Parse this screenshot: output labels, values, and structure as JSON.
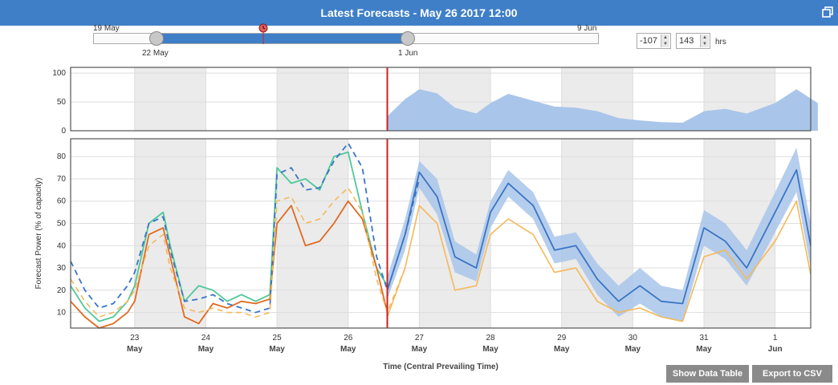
{
  "header": {
    "title": "Latest Forecasts - May 26 2017 12:00"
  },
  "range": {
    "start_label": "19 May",
    "end_label": "9 Jun",
    "left_handle_label": "22 May",
    "right_handle_label": "1 Jun"
  },
  "controls": {
    "back_hours": "-107",
    "forward_hours": "143",
    "unit": "hrs"
  },
  "buttons": {
    "data_table": "Show Data Table",
    "export": "Export to CSV"
  },
  "colors": {
    "accent": "#3f7fc8",
    "now_line": "#cc2222",
    "forecast_blue": "#3a75c4",
    "band": "#a9c5ea",
    "green": "#4fc89a",
    "orange": "#e06a20",
    "light_orange": "#f5b85a",
    "shade": "#ebebeb"
  },
  "chart_data": [
    {
      "type": "area",
      "ylim": [
        0,
        110
      ],
      "yticks": [
        0,
        50,
        100
      ],
      "x": [
        26.55,
        26.8,
        27.0,
        27.25,
        27.5,
        27.8,
        28.0,
        28.25,
        28.6,
        28.9,
        29.2,
        29.5,
        29.8,
        30.1,
        30.4,
        30.7,
        31.0,
        31.3,
        31.6,
        32.0,
        32.3,
        32.6
      ],
      "values": [
        25,
        55,
        72,
        65,
        40,
        30,
        48,
        64,
        52,
        42,
        40,
        34,
        22,
        18,
        15,
        14,
        34,
        38,
        30,
        48,
        72,
        48
      ]
    },
    {
      "type": "line",
      "ylabel": "Forecast Power (% of capacity)",
      "xlabel": "Time (Central Prevailing Time)",
      "ylim": [
        3,
        88
      ],
      "yticks": [
        10,
        20,
        30,
        40,
        50,
        60,
        70,
        80
      ],
      "xlim": [
        22.1,
        32.5
      ],
      "x_tick_days": [
        "23",
        "24",
        "25",
        "26",
        "27",
        "28",
        "29",
        "30",
        "31",
        "1"
      ],
      "x_tick_months": [
        "May",
        "May",
        "May",
        "May",
        "May",
        "May",
        "May",
        "May",
        "May",
        "Jun"
      ],
      "now": 26.55,
      "shaded_days": [
        [
          23,
          24
        ],
        [
          25,
          26
        ],
        [
          27,
          28
        ],
        [
          29,
          30
        ],
        [
          31,
          32
        ]
      ],
      "series": [
        {
          "style": "green",
          "x": [
            22.1,
            22.3,
            22.5,
            22.7,
            22.9,
            23.0,
            23.2,
            23.4,
            23.5,
            23.7,
            23.9,
            24.1,
            24.3,
            24.5,
            24.7,
            24.9,
            25.0,
            25.2,
            25.4,
            25.6,
            25.8,
            26.0,
            26.2,
            26.4,
            26.55
          ],
          "values": [
            22,
            12,
            6,
            8,
            15,
            22,
            50,
            55,
            40,
            15,
            22,
            20,
            15,
            18,
            15,
            18,
            75,
            68,
            70,
            65,
            80,
            82,
            55,
            30,
            22
          ]
        },
        {
          "style": "orange",
          "x": [
            22.1,
            22.3,
            22.5,
            22.7,
            22.9,
            23.0,
            23.2,
            23.4,
            23.5,
            23.7,
            23.9,
            24.1,
            24.3,
            24.5,
            24.7,
            24.9,
            25.0,
            25.2,
            25.4,
            25.6,
            25.8,
            26.0,
            26.2,
            26.4,
            26.55
          ],
          "values": [
            15,
            8,
            3,
            5,
            10,
            15,
            45,
            48,
            35,
            8,
            5,
            14,
            12,
            15,
            14,
            16,
            50,
            58,
            40,
            42,
            50,
            60,
            52,
            30,
            10
          ]
        },
        {
          "style": "blue-dashed",
          "x": [
            22.1,
            22.3,
            22.5,
            22.7,
            22.9,
            23.0,
            23.2,
            23.4,
            23.5,
            23.7,
            23.9,
            24.1,
            24.3,
            24.5,
            24.7,
            24.9,
            25.0,
            25.2,
            25.4,
            25.6,
            25.8,
            26.0,
            26.2,
            26.4,
            26.55,
            26.8,
            27.0
          ],
          "values": [
            33,
            20,
            12,
            14,
            22,
            28,
            50,
            53,
            38,
            15,
            16,
            18,
            14,
            12,
            10,
            12,
            72,
            75,
            65,
            66,
            78,
            86,
            75,
            35,
            20,
            45,
            70
          ]
        },
        {
          "style": "light-orange-dashed",
          "x": [
            22.1,
            22.3,
            22.5,
            22.7,
            22.9,
            23.0,
            23.2,
            23.4,
            23.5,
            23.7,
            23.9,
            24.1,
            24.3,
            24.5,
            24.7,
            24.9,
            25.0,
            25.2,
            25.4,
            25.6,
            25.8,
            26.0,
            26.2,
            26.4,
            26.55,
            26.8
          ],
          "values": [
            25,
            15,
            8,
            10,
            15,
            20,
            40,
            45,
            30,
            12,
            10,
            12,
            10,
            10,
            8,
            10,
            60,
            62,
            50,
            52,
            60,
            66,
            55,
            25,
            10,
            30
          ]
        },
        {
          "style": "blue",
          "x": [
            26.55,
            26.8,
            27.0,
            27.25,
            27.5,
            27.8,
            28.0,
            28.25,
            28.6,
            28.9,
            29.2,
            29.5,
            29.8,
            30.1,
            30.4,
            30.7,
            31.0,
            31.3,
            31.6,
            32.0,
            32.3,
            32.5
          ],
          "values": [
            20,
            45,
            73,
            62,
            35,
            30,
            55,
            68,
            58,
            38,
            40,
            25,
            15,
            22,
            15,
            14,
            48,
            42,
            30,
            55,
            74,
            40
          ]
        },
        {
          "style": "light-orange",
          "x": [
            26.55,
            26.8,
            27.0,
            27.25,
            27.5,
            27.8,
            28.0,
            28.25,
            28.6,
            28.9,
            29.2,
            29.5,
            29.8,
            30.1,
            30.4,
            30.7,
            31.0,
            31.3,
            31.6,
            32.0,
            32.3,
            32.5
          ],
          "values": [
            8,
            30,
            58,
            50,
            20,
            22,
            45,
            52,
            45,
            28,
            30,
            15,
            10,
            12,
            8,
            6,
            35,
            38,
            25,
            42,
            60,
            27
          ]
        }
      ],
      "band": {
        "x": [
          26.55,
          26.8,
          27.0,
          27.25,
          27.5,
          27.8,
          28.0,
          28.25,
          28.6,
          28.9,
          29.2,
          29.5,
          29.8,
          30.1,
          30.4,
          30.7,
          31.0,
          31.3,
          31.6,
          32.0,
          32.3,
          32.5
        ],
        "upper": [
          26,
          52,
          78,
          70,
          42,
          36,
          60,
          74,
          64,
          44,
          46,
          32,
          22,
          30,
          22,
          20,
          56,
          50,
          38,
          64,
          84,
          50
        ],
        "lower": [
          16,
          38,
          66,
          54,
          28,
          24,
          48,
          62,
          52,
          32,
          34,
          18,
          8,
          14,
          8,
          6,
          40,
          34,
          22,
          46,
          64,
          30
        ]
      }
    }
  ]
}
